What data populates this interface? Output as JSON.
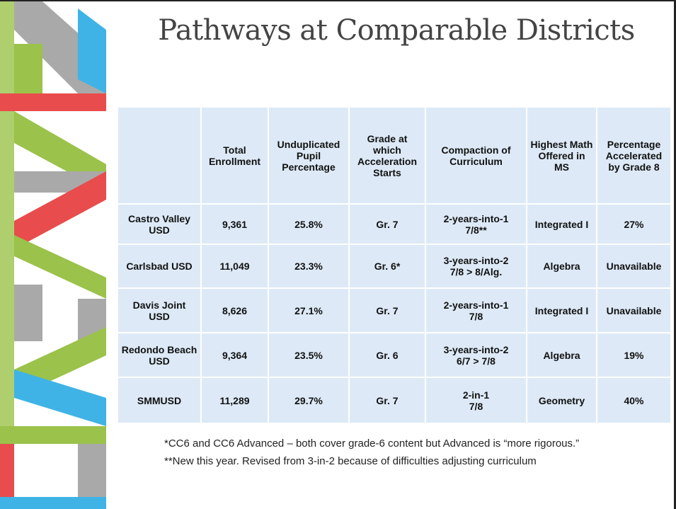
{
  "title": "Pathways at Comparable Districts",
  "table": {
    "header": [
      "Total Enrollment",
      "Unduplicated Pupil Percentage",
      "Grade at which Acceleration Starts",
      "Compaction of Curriculum",
      "Highest Math Offered in MS",
      "Percentage Accelerated by Grade 8"
    ],
    "rows": [
      [
        "Castro Valley USD",
        "9,361",
        "25.8%",
        "Gr. 7",
        "2-years-into-1\n7/8**",
        "Integrated I",
        "27%"
      ],
      [
        "Carlsbad USD",
        "11,049",
        "23.3%",
        "Gr. 6*",
        "3-years-into-2\n7/8 > 8/Alg.",
        "Algebra",
        "Unavailable"
      ],
      [
        "Davis Joint USD",
        "8,626",
        "27.1%",
        "Gr. 7",
        "2-years-into-1\n7/8",
        "Integrated I",
        "Unavailable"
      ],
      [
        "Redondo Beach USD",
        "9,364",
        "23.5%",
        "Gr. 6",
        "3-years-into-2\n6/7 > 7/8",
        "Algebra",
        "19%"
      ],
      [
        "SMMUSD",
        "11,289",
        "29.7%",
        "Gr. 7",
        "2-in-1\n7/8",
        "Geometry",
        "40%"
      ]
    ]
  },
  "footnotes": [
    "*CC6 and CC6 Advanced – both cover grade-6 content but Advanced is “more rigorous.”",
    "**New this year. Revised from 3-in-2 because of difficulties adjusting curriculum"
  ]
}
